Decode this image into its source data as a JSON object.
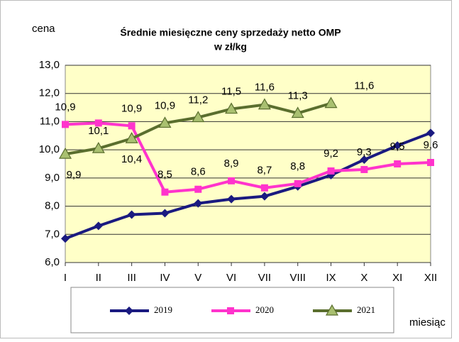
{
  "chart_data": {
    "type": "line",
    "title": "Średnie miesięczne  ceny sprzedaży netto OMP",
    "subtitle": "w zł/kg",
    "y_label": "cena",
    "x_label": "miesiąc",
    "categories": [
      "I",
      "II",
      "III",
      "IV",
      "V",
      "VI",
      "VII",
      "VIII",
      "IX",
      "X",
      "XI",
      "XII"
    ],
    "ylim": [
      6,
      13
    ],
    "yticks": [
      {
        "value": 6,
        "label": "6,0"
      },
      {
        "value": 7,
        "label": "7,0"
      },
      {
        "value": 8,
        "label": "8,0"
      },
      {
        "value": 9,
        "label": "9,0"
      },
      {
        "value": 10,
        "label": "10,0"
      },
      {
        "value": 11,
        "label": "11,0"
      },
      {
        "value": 12,
        "label": "12,0"
      },
      {
        "value": 13,
        "label": "13,0"
      }
    ],
    "grid": true,
    "legend": "bottom",
    "series": [
      {
        "name": "2019",
        "color": "#1a1a80",
        "marker": "diamond",
        "values": [
          6.85,
          7.3,
          7.7,
          7.75,
          8.1,
          8.25,
          8.35,
          8.7,
          9.1,
          9.65,
          10.15,
          10.6
        ]
      },
      {
        "name": "2020",
        "color": "#ff33cc",
        "marker": "square",
        "values": [
          10.9,
          10.95,
          10.85,
          8.5,
          8.6,
          8.9,
          8.65,
          8.8,
          9.25,
          9.3,
          9.5,
          9.55
        ],
        "value_labels": [
          "10,9",
          null,
          "10,9",
          "8,5",
          "8,6",
          "8,9",
          "8,7",
          "8,8",
          "9,2",
          "9,3",
          "9,5",
          "9,6"
        ]
      },
      {
        "name": "2021",
        "color": "#5a6e2e",
        "marker": "triangle",
        "values": [
          9.85,
          10.05,
          10.4,
          10.95,
          11.15,
          11.45,
          11.6,
          11.3,
          11.65,
          null,
          null,
          null
        ],
        "value_labels": [
          "9,9",
          "10,1",
          "10,4",
          "10,9",
          "11,2",
          "11,5",
          "11,6",
          "11,3",
          "11,6",
          null,
          null,
          null
        ]
      }
    ]
  }
}
